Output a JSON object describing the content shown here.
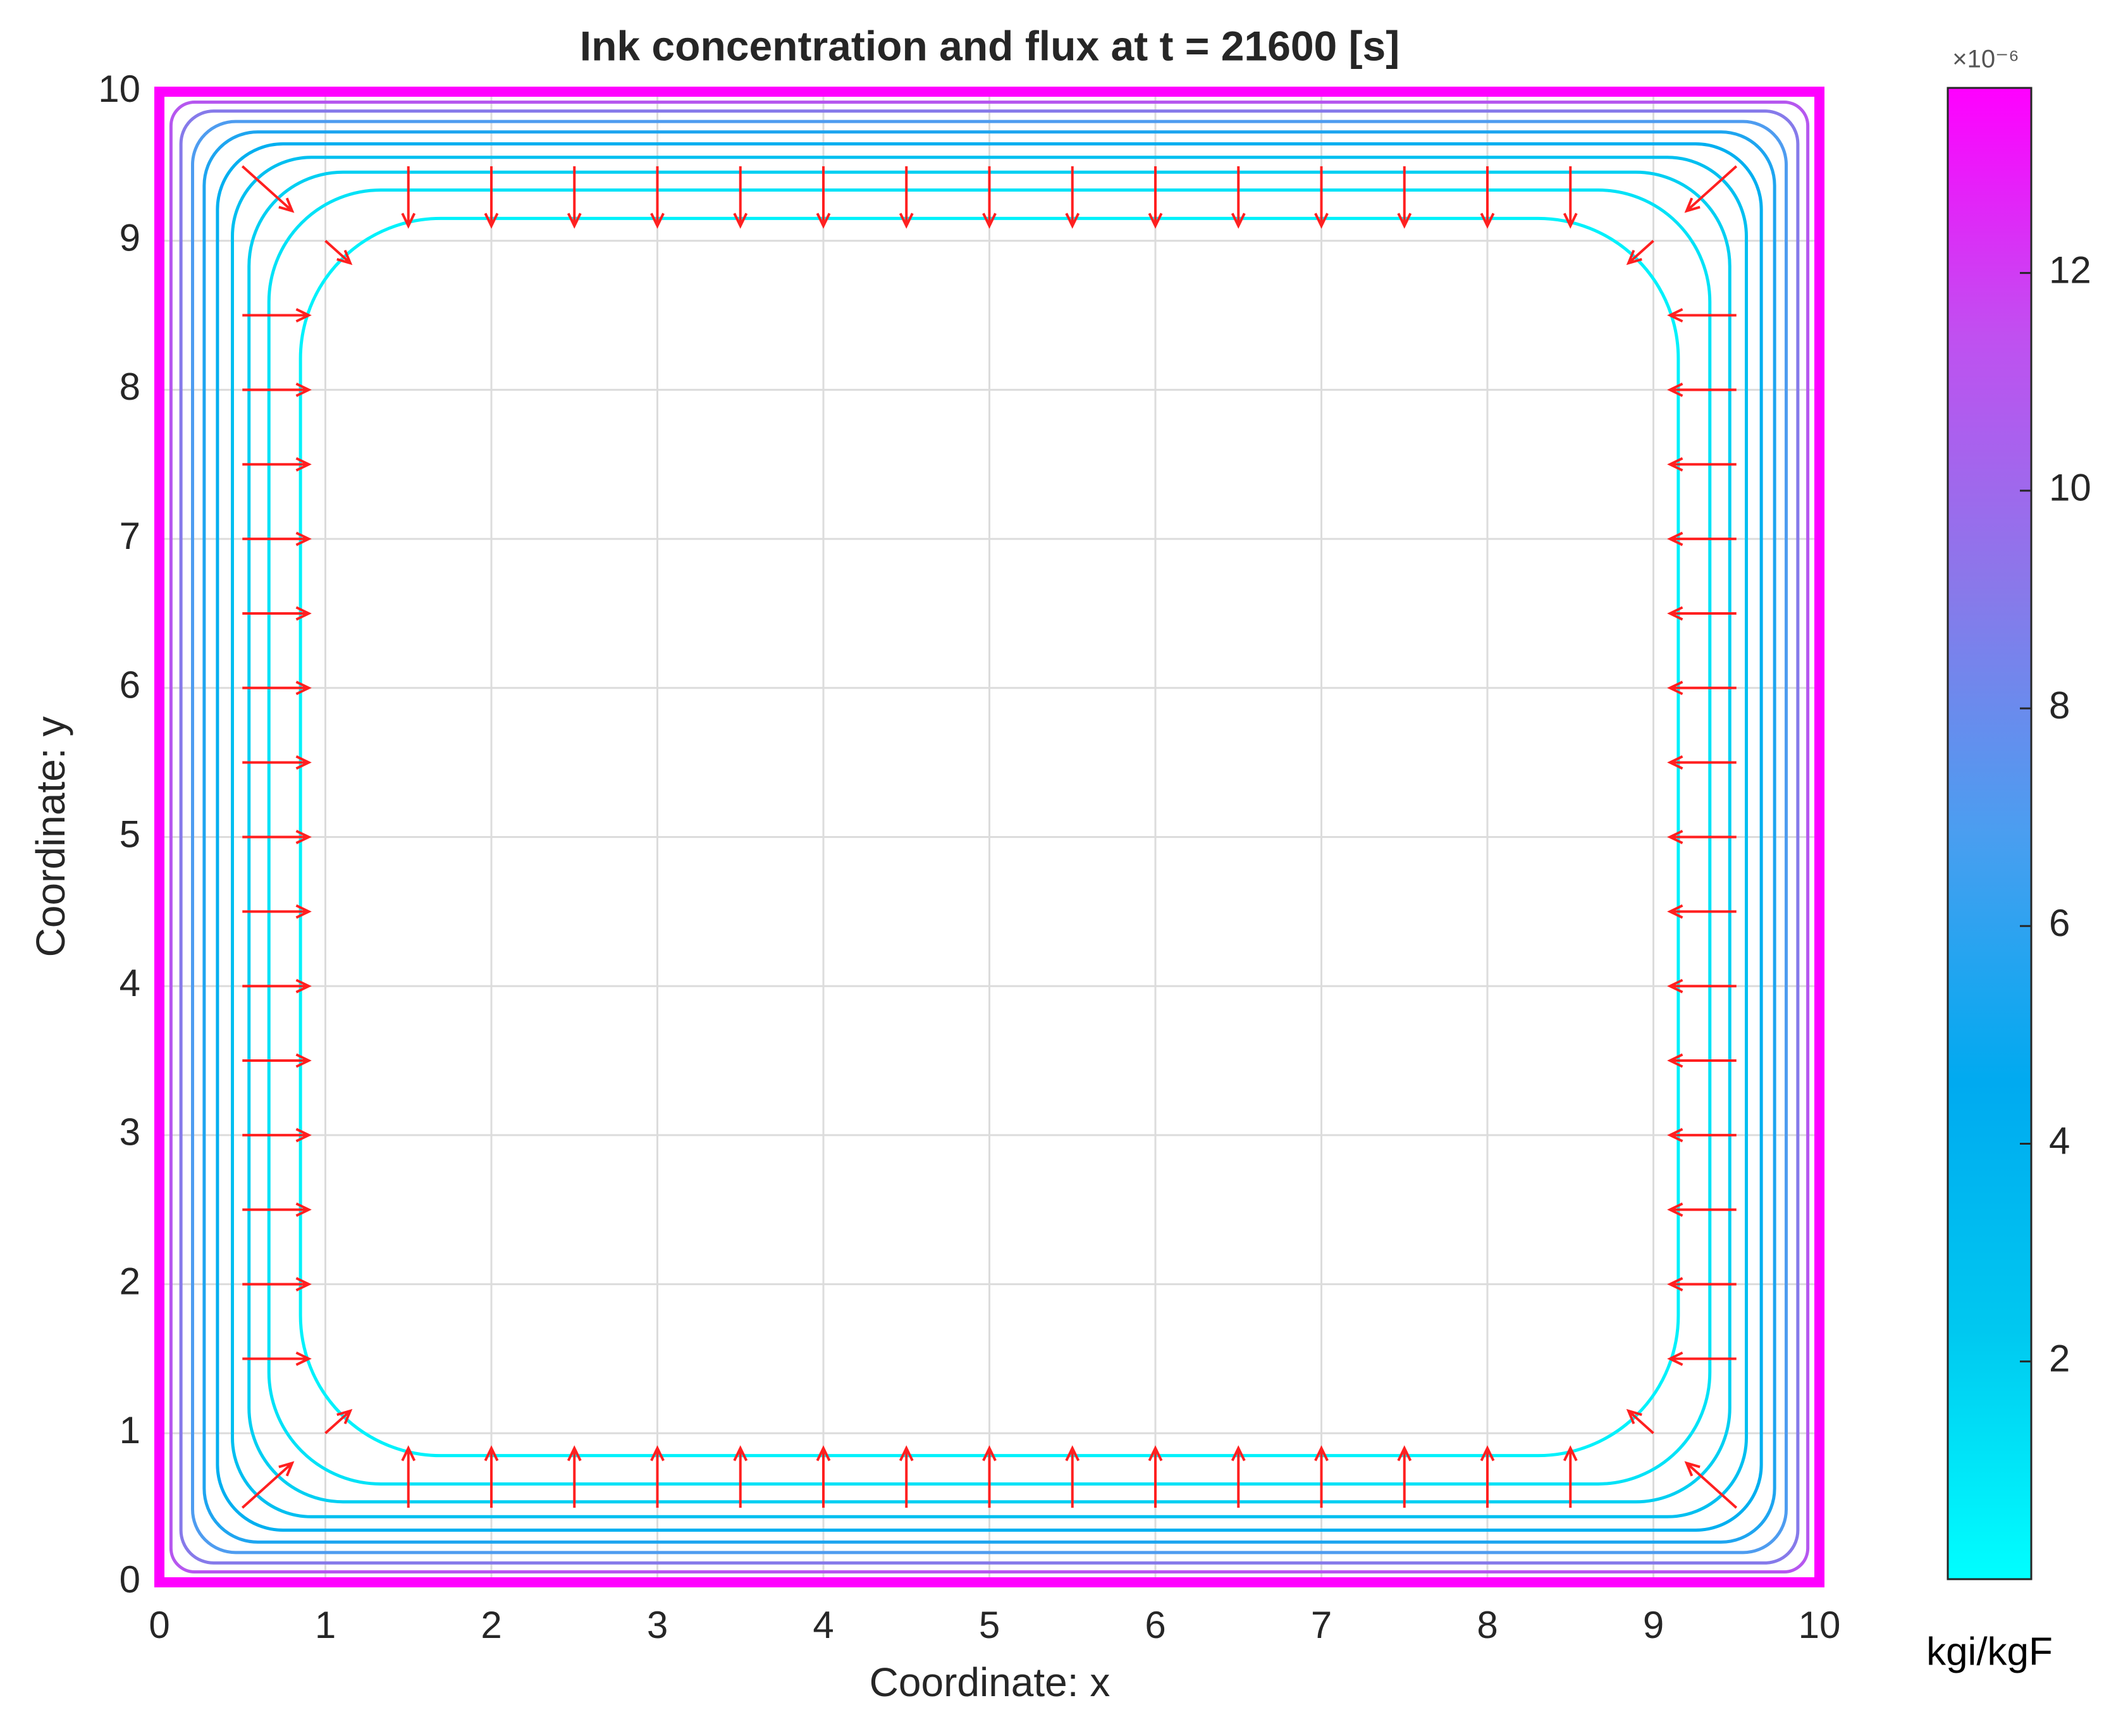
{
  "chart_data": {
    "type": "contour-quiver",
    "title": "Ink concentration and flux at t = 21600 [s]",
    "xlabel": "Coordinate: x",
    "ylabel": "Coordinate: y",
    "xlim": [
      0,
      10
    ],
    "ylim": [
      0,
      10
    ],
    "xticks": [
      0,
      1,
      2,
      3,
      4,
      5,
      6,
      7,
      8,
      9,
      10
    ],
    "yticks": [
      0,
      1,
      2,
      3,
      4,
      5,
      6,
      7,
      8,
      9,
      10
    ],
    "grid": true,
    "contours": [
      {
        "level": 13.7,
        "inset": 0
      },
      {
        "level": 11,
        "inset": 0.07
      },
      {
        "level": 9,
        "inset": 0.13
      },
      {
        "level": 7,
        "inset": 0.2
      },
      {
        "level": 5.5,
        "inset": 0.27
      },
      {
        "level": 4.2,
        "inset": 0.35
      },
      {
        "level": 3,
        "inset": 0.44
      },
      {
        "level": 2,
        "inset": 0.54
      },
      {
        "level": 1.2,
        "inset": 0.66
      },
      {
        "level": 0.6,
        "inset": 0.85
      }
    ],
    "arrow_color": "#ff2020",
    "quiver": [
      {
        "x": [
          1.5,
          2,
          2.5,
          3,
          3.5,
          4,
          4.5,
          5,
          5.5,
          6,
          6.5,
          7,
          7.5,
          8,
          8.5
        ],
        "y": [
          9.5,
          9.5,
          9.5,
          9.5,
          9.5,
          9.5,
          9.5,
          9.5,
          9.5,
          9.5,
          9.5,
          9.5,
          9.5,
          9.5,
          9.5
        ],
        "u": [
          0,
          0,
          0,
          0,
          0,
          0,
          0,
          0,
          0,
          0,
          0,
          0,
          0,
          0,
          0
        ],
        "v": [
          -0.4,
          -0.4,
          -0.4,
          -0.4,
          -0.4,
          -0.4,
          -0.4,
          -0.4,
          -0.4,
          -0.4,
          -0.4,
          -0.4,
          -0.4,
          -0.4,
          -0.4
        ]
      },
      {
        "x": [
          1.5,
          2,
          2.5,
          3,
          3.5,
          4,
          4.5,
          5,
          5.5,
          6,
          6.5,
          7,
          7.5,
          8,
          8.5
        ],
        "y": [
          0.5,
          0.5,
          0.5,
          0.5,
          0.5,
          0.5,
          0.5,
          0.5,
          0.5,
          0.5,
          0.5,
          0.5,
          0.5,
          0.5,
          0.5
        ],
        "u": [
          0,
          0,
          0,
          0,
          0,
          0,
          0,
          0,
          0,
          0,
          0,
          0,
          0,
          0,
          0
        ],
        "v": [
          0.4,
          0.4,
          0.4,
          0.4,
          0.4,
          0.4,
          0.4,
          0.4,
          0.4,
          0.4,
          0.4,
          0.4,
          0.4,
          0.4,
          0.4
        ]
      },
      {
        "x": [
          0.5,
          0.5,
          0.5,
          0.5,
          0.5,
          0.5,
          0.5,
          0.5,
          0.5,
          0.5,
          0.5,
          0.5,
          0.5,
          0.5,
          0.5
        ],
        "y": [
          1.5,
          2,
          2.5,
          3,
          3.5,
          4,
          4.5,
          5,
          5.5,
          6,
          6.5,
          7,
          7.5,
          8,
          8.5
        ],
        "u": [
          0.4,
          0.4,
          0.4,
          0.4,
          0.4,
          0.4,
          0.4,
          0.4,
          0.4,
          0.4,
          0.4,
          0.4,
          0.4,
          0.4,
          0.4
        ],
        "v": [
          0,
          0,
          0,
          0,
          0,
          0,
          0,
          0,
          0,
          0,
          0,
          0,
          0,
          0,
          0
        ]
      },
      {
        "x": [
          9.5,
          9.5,
          9.5,
          9.5,
          9.5,
          9.5,
          9.5,
          9.5,
          9.5,
          9.5,
          9.5,
          9.5,
          9.5,
          9.5,
          9.5
        ],
        "y": [
          1.5,
          2,
          2.5,
          3,
          3.5,
          4,
          4.5,
          5,
          5.5,
          6,
          6.5,
          7,
          7.5,
          8,
          8.5
        ],
        "u": [
          -0.4,
          -0.4,
          -0.4,
          -0.4,
          -0.4,
          -0.4,
          -0.4,
          -0.4,
          -0.4,
          -0.4,
          -0.4,
          -0.4,
          -0.4,
          -0.4,
          -0.4
        ],
        "v": [
          0,
          0,
          0,
          0,
          0,
          0,
          0,
          0,
          0,
          0,
          0,
          0,
          0,
          0,
          0
        ]
      },
      {
        "x": [
          0.5,
          9.5,
          0.5,
          9.5,
          1,
          9,
          1,
          9
        ],
        "y": [
          0.5,
          0.5,
          9.5,
          9.5,
          1,
          1,
          9,
          9
        ],
        "u": [
          0.3,
          -0.3,
          0.3,
          -0.3,
          0.15,
          -0.15,
          0.15,
          -0.15
        ],
        "v": [
          0.3,
          0.3,
          -0.3,
          -0.3,
          0.15,
          0.15,
          -0.15,
          -0.15
        ]
      }
    ],
    "colorbar": {
      "clim": [
        0,
        13.7
      ],
      "cticks": [
        2,
        4,
        6,
        8,
        10,
        12
      ],
      "multiplier": "×10⁻⁶",
      "unit": "kgi/kgF",
      "colormap": [
        "#00ffff",
        "#00c8f0",
        "#00aaf0",
        "#4a9ef0",
        "#8a78ea",
        "#c050f0",
        "#ff00ff"
      ]
    }
  }
}
